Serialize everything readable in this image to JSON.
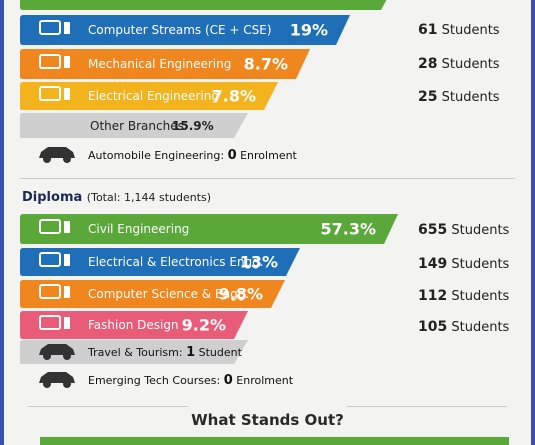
{
  "engineering": {
    "rows": [
      {
        "label": "Computer Streams (CE + CSE)",
        "percent": "19%",
        "count": "61",
        "unit": "Students"
      },
      {
        "label": "Mechanical Engineering",
        "percent": "8.7%",
        "count": "28",
        "unit": "Students"
      },
      {
        "label": "Electrical Engineering",
        "percent": "7.8%",
        "count": "25",
        "unit": "Students"
      }
    ],
    "other": {
      "label": "Other Branches",
      "percent": "15.9%"
    },
    "note": {
      "label": "Automobile Engineering:",
      "count": "0",
      "unit": "Enrolment"
    }
  },
  "diploma": {
    "title": "Diploma",
    "total": "(Total: 1,144 students)",
    "rows": [
      {
        "label": "Civil Engineering",
        "percent": "57.3%",
        "count": "655",
        "unit": "Students"
      },
      {
        "label": "Electrical & Electronics Engg.",
        "percent": "13%",
        "count": "149",
        "unit": "Students"
      },
      {
        "label": "Computer Science & Engg.",
        "percent": "9.8%",
        "count": "112",
        "unit": "Students"
      },
      {
        "label": "Fashion Design",
        "percent": "9.2%",
        "count": "105",
        "unit": "Students"
      }
    ],
    "notes": [
      {
        "label": "Travel & Tourism:",
        "count": "1",
        "unit": "Student"
      },
      {
        "label": "Emerging Tech Courses:",
        "count": "0",
        "unit": "Enrolment"
      }
    ]
  },
  "footer_heading": "What Stands Out?"
}
